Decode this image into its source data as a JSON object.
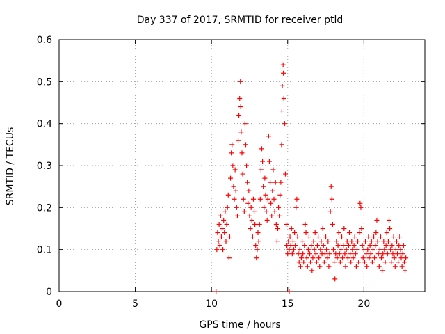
{
  "chart_data": {
    "type": "scatter",
    "title": "Day 337 of 2017, SRMTID for receiver ptld",
    "xlabel": "GPS time / hours",
    "ylabel": "SRMTID / TECUs",
    "xlim": [
      0,
      24
    ],
    "ylim": [
      0,
      0.6
    ],
    "xticks": [
      0,
      5,
      10,
      15,
      20
    ],
    "yticks": [
      0,
      0.1,
      0.2,
      0.3,
      0.4,
      0.5,
      0.6
    ],
    "xtick_labels": [
      "0",
      "5",
      "10",
      "15",
      "20"
    ],
    "ytick_labels": [
      "0",
      "0.1",
      "0.2",
      "0.3",
      "0.4",
      "0.5",
      "0.6"
    ],
    "grid": true,
    "marker": "+",
    "color": "#ff0000",
    "series": [
      {
        "name": "SRMTID",
        "points": [
          [
            10.3,
            0.0
          ],
          [
            15.1,
            0.0
          ],
          [
            10.35,
            0.1
          ],
          [
            10.4,
            0.14
          ],
          [
            10.45,
            0.12
          ],
          [
            10.5,
            0.16
          ],
          [
            10.55,
            0.11
          ],
          [
            10.6,
            0.18
          ],
          [
            10.65,
            0.13
          ],
          [
            10.7,
            0.15
          ],
          [
            10.75,
            0.1
          ],
          [
            10.8,
            0.17
          ],
          [
            10.85,
            0.14
          ],
          [
            10.9,
            0.19
          ],
          [
            10.95,
            0.12
          ],
          [
            11.0,
            0.16
          ],
          [
            11.05,
            0.2
          ],
          [
            11.1,
            0.23
          ],
          [
            11.15,
            0.08
          ],
          [
            11.2,
            0.13
          ],
          [
            11.25,
            0.27
          ],
          [
            11.3,
            0.33
          ],
          [
            11.35,
            0.35
          ],
          [
            11.4,
            0.3
          ],
          [
            11.45,
            0.25
          ],
          [
            11.5,
            0.22
          ],
          [
            11.55,
            0.29
          ],
          [
            11.6,
            0.24
          ],
          [
            11.65,
            0.2
          ],
          [
            11.7,
            0.18
          ],
          [
            11.75,
            0.36
          ],
          [
            11.8,
            0.42
          ],
          [
            11.85,
            0.46
          ],
          [
            11.9,
            0.5
          ],
          [
            11.92,
            0.44
          ],
          [
            11.95,
            0.38
          ],
          [
            12.0,
            0.33
          ],
          [
            12.05,
            0.28
          ],
          [
            12.1,
            0.22
          ],
          [
            12.15,
            0.19
          ],
          [
            12.2,
            0.4
          ],
          [
            12.25,
            0.35
          ],
          [
            12.3,
            0.3
          ],
          [
            12.35,
            0.26
          ],
          [
            12.4,
            0.21
          ],
          [
            12.45,
            0.24
          ],
          [
            12.5,
            0.18
          ],
          [
            12.55,
            0.15
          ],
          [
            12.6,
            0.2
          ],
          [
            12.65,
            0.17
          ],
          [
            12.7,
            0.13
          ],
          [
            12.75,
            0.22
          ],
          [
            12.8,
            0.19
          ],
          [
            12.85,
            0.16
          ],
          [
            12.9,
            0.11
          ],
          [
            12.95,
            0.08
          ],
          [
            13.0,
            0.1
          ],
          [
            13.05,
            0.14
          ],
          [
            13.1,
            0.12
          ],
          [
            13.15,
            0.16
          ],
          [
            13.2,
            0.22
          ],
          [
            13.25,
            0.29
          ],
          [
            13.3,
            0.34
          ],
          [
            13.35,
            0.31
          ],
          [
            13.4,
            0.25
          ],
          [
            13.45,
            0.2
          ],
          [
            13.5,
            0.27
          ],
          [
            13.55,
            0.23
          ],
          [
            13.6,
            0.19
          ],
          [
            13.65,
            0.17
          ],
          [
            13.7,
            0.22
          ],
          [
            13.75,
            0.37
          ],
          [
            13.8,
            0.31
          ],
          [
            13.85,
            0.26
          ],
          [
            13.9,
            0.21
          ],
          [
            13.95,
            0.18
          ],
          [
            14.0,
            0.24
          ],
          [
            14.05,
            0.29
          ],
          [
            14.1,
            0.22
          ],
          [
            14.15,
            0.19
          ],
          [
            14.2,
            0.26
          ],
          [
            14.25,
            0.16
          ],
          [
            14.3,
            0.12
          ],
          [
            14.35,
            0.15
          ],
          [
            14.4,
            0.2
          ],
          [
            14.45,
            0.18
          ],
          [
            14.5,
            0.23
          ],
          [
            14.55,
            0.26
          ],
          [
            14.6,
            0.35
          ],
          [
            14.62,
            0.43
          ],
          [
            14.65,
            0.49
          ],
          [
            14.7,
            0.54
          ],
          [
            14.72,
            0.52
          ],
          [
            14.75,
            0.46
          ],
          [
            14.8,
            0.4
          ],
          [
            14.85,
            0.28
          ],
          [
            14.9,
            0.16
          ],
          [
            14.95,
            0.11
          ],
          [
            15.0,
            0.09
          ],
          [
            15.05,
            0.12
          ],
          [
            15.1,
            0.1
          ],
          [
            15.15,
            0.13
          ],
          [
            15.2,
            0.11
          ],
          [
            15.25,
            0.15
          ],
          [
            15.3,
            0.09
          ],
          [
            15.35,
            0.12
          ],
          [
            15.4,
            0.1
          ],
          [
            15.45,
            0.14
          ],
          [
            15.5,
            0.11
          ],
          [
            15.55,
            0.2
          ],
          [
            15.6,
            0.22
          ],
          [
            15.65,
            0.13
          ],
          [
            15.7,
            0.09
          ],
          [
            15.75,
            0.07
          ],
          [
            15.8,
            0.1
          ],
          [
            15.85,
            0.06
          ],
          [
            15.9,
            0.08
          ],
          [
            15.95,
            0.12
          ],
          [
            16.0,
            0.09
          ],
          [
            16.05,
            0.07
          ],
          [
            16.1,
            0.11
          ],
          [
            16.15,
            0.16
          ],
          [
            16.2,
            0.14
          ],
          [
            16.25,
            0.08
          ],
          [
            16.3,
            0.06
          ],
          [
            16.35,
            0.1
          ],
          [
            16.4,
            0.13
          ],
          [
            16.45,
            0.09
          ],
          [
            16.5,
            0.07
          ],
          [
            16.55,
            0.11
          ],
          [
            16.6,
            0.05
          ],
          [
            16.65,
            0.08
          ],
          [
            16.7,
            0.12
          ],
          [
            16.75,
            0.1
          ],
          [
            16.8,
            0.14
          ],
          [
            16.85,
            0.09
          ],
          [
            16.9,
            0.07
          ],
          [
            16.95,
            0.11
          ],
          [
            17.0,
            0.13
          ],
          [
            17.05,
            0.08
          ],
          [
            17.1,
            0.06
          ],
          [
            17.15,
            0.1
          ],
          [
            17.2,
            0.12
          ],
          [
            17.25,
            0.09
          ],
          [
            17.3,
            0.15
          ],
          [
            17.35,
            0.11
          ],
          [
            17.4,
            0.07
          ],
          [
            17.45,
            0.09
          ],
          [
            17.5,
            0.13
          ],
          [
            17.55,
            0.1
          ],
          [
            17.6,
            0.08
          ],
          [
            17.65,
            0.12
          ],
          [
            17.7,
            0.06
          ],
          [
            17.75,
            0.09
          ],
          [
            17.8,
            0.19
          ],
          [
            17.85,
            0.25
          ],
          [
            17.9,
            0.22
          ],
          [
            17.95,
            0.16
          ],
          [
            18.0,
            0.1
          ],
          [
            18.05,
            0.07
          ],
          [
            18.1,
            0.03
          ],
          [
            18.15,
            0.09
          ],
          [
            18.2,
            0.12
          ],
          [
            18.25,
            0.08
          ],
          [
            18.3,
            0.11
          ],
          [
            18.35,
            0.14
          ],
          [
            18.4,
            0.09
          ],
          [
            18.45,
            0.07
          ],
          [
            18.5,
            0.1
          ],
          [
            18.55,
            0.13
          ],
          [
            18.6,
            0.08
          ],
          [
            18.65,
            0.11
          ],
          [
            18.7,
            0.15
          ],
          [
            18.75,
            0.09
          ],
          [
            18.8,
            0.06
          ],
          [
            18.85,
            0.1
          ],
          [
            18.9,
            0.12
          ],
          [
            18.95,
            0.08
          ],
          [
            19.0,
            0.11
          ],
          [
            19.05,
            0.14
          ],
          [
            19.1,
            0.09
          ],
          [
            19.15,
            0.07
          ],
          [
            19.2,
            0.12
          ],
          [
            19.25,
            0.1
          ],
          [
            19.3,
            0.08
          ],
          [
            19.35,
            0.11
          ],
          [
            19.4,
            0.13
          ],
          [
            19.45,
            0.09
          ],
          [
            19.5,
            0.06
          ],
          [
            19.55,
            0.1
          ],
          [
            19.6,
            0.12
          ],
          [
            19.65,
            0.07
          ],
          [
            19.7,
            0.14
          ],
          [
            19.75,
            0.21
          ],
          [
            19.8,
            0.2
          ],
          [
            19.85,
            0.15
          ],
          [
            19.9,
            0.11
          ],
          [
            19.95,
            0.08
          ],
          [
            20.0,
            0.1
          ],
          [
            20.05,
            0.07
          ],
          [
            20.1,
            0.12
          ],
          [
            20.15,
            0.09
          ],
          [
            20.2,
            0.06
          ],
          [
            20.25,
            0.1
          ],
          [
            20.3,
            0.13
          ],
          [
            20.35,
            0.08
          ],
          [
            20.4,
            0.11
          ],
          [
            20.45,
            0.09
          ],
          [
            20.5,
            0.12
          ],
          [
            20.55,
            0.07
          ],
          [
            20.6,
            0.1
          ],
          [
            20.65,
            0.13
          ],
          [
            20.7,
            0.08
          ],
          [
            20.75,
            0.11
          ],
          [
            20.8,
            0.14
          ],
          [
            20.85,
            0.17
          ],
          [
            20.9,
            0.12
          ],
          [
            20.95,
            0.09
          ],
          [
            21.0,
            0.06
          ],
          [
            21.05,
            0.1
          ],
          [
            21.1,
            0.13
          ],
          [
            21.15,
            0.08
          ],
          [
            21.2,
            0.05
          ],
          [
            21.25,
            0.09
          ],
          [
            21.3,
            0.12
          ],
          [
            21.35,
            0.1
          ],
          [
            21.4,
            0.07
          ],
          [
            21.45,
            0.11
          ],
          [
            21.5,
            0.14
          ],
          [
            21.55,
            0.09
          ],
          [
            21.6,
            0.12
          ],
          [
            21.65,
            0.17
          ],
          [
            21.7,
            0.15
          ],
          [
            21.75,
            0.1
          ],
          [
            21.8,
            0.07
          ],
          [
            21.85,
            0.11
          ],
          [
            21.9,
            0.09
          ],
          [
            21.95,
            0.13
          ],
          [
            22.0,
            0.08
          ],
          [
            22.05,
            0.06
          ],
          [
            22.1,
            0.1
          ],
          [
            22.15,
            0.12
          ],
          [
            22.2,
            0.09
          ],
          [
            22.25,
            0.07
          ],
          [
            22.3,
            0.11
          ],
          [
            22.35,
            0.13
          ],
          [
            22.4,
            0.1
          ],
          [
            22.45,
            0.08
          ],
          [
            22.5,
            0.06
          ],
          [
            22.55,
            0.09
          ],
          [
            22.6,
            0.11
          ],
          [
            22.65,
            0.07
          ],
          [
            22.7,
            0.05
          ],
          [
            22.75,
            0.08
          ]
        ]
      }
    ]
  }
}
